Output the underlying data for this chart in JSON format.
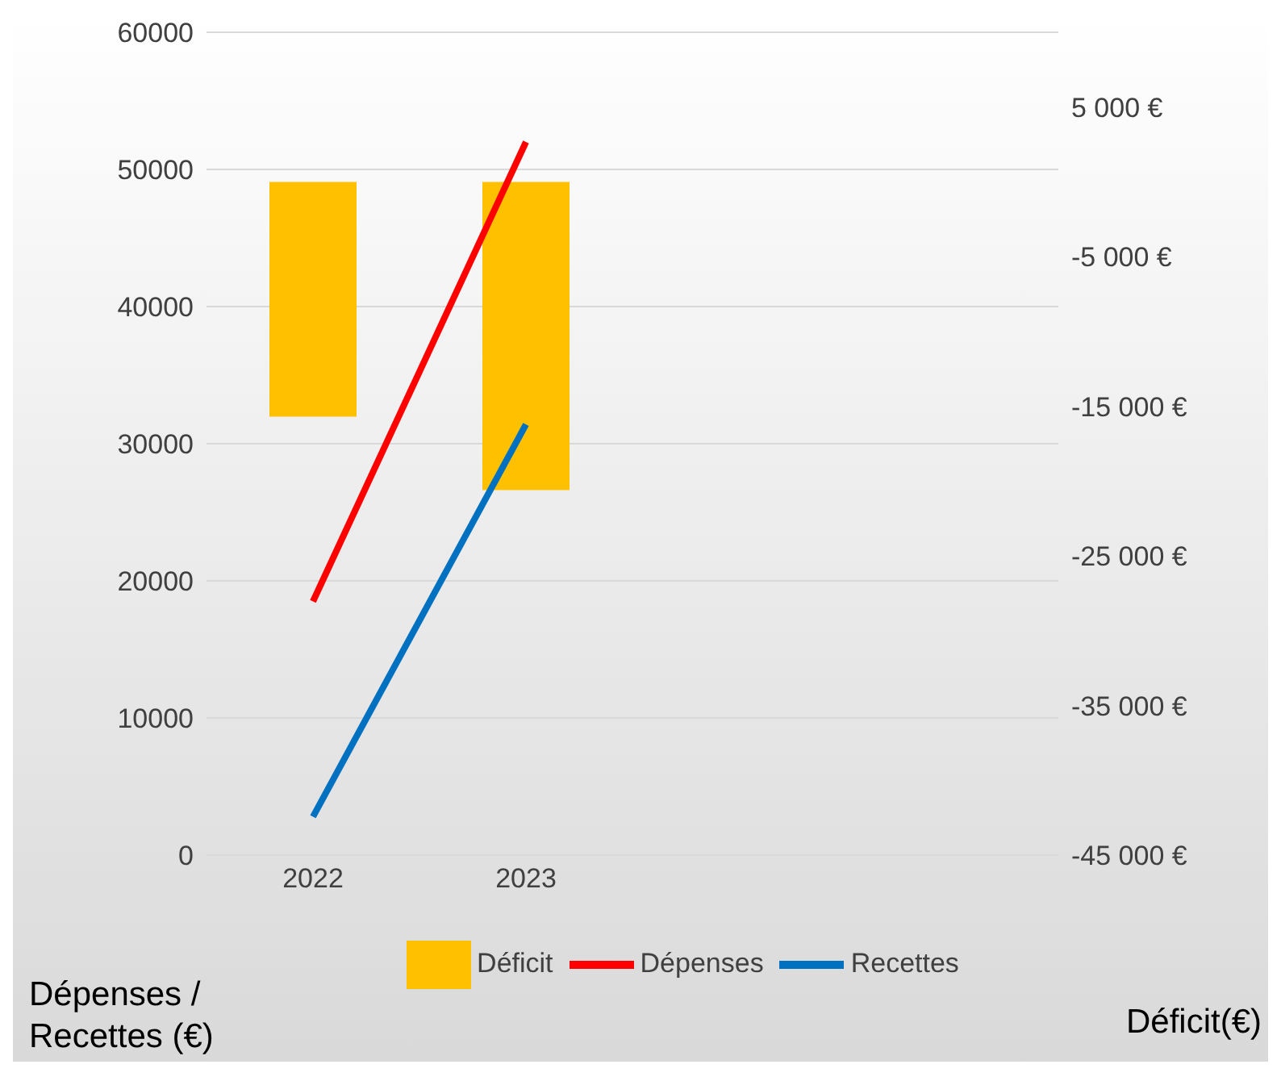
{
  "chart_data": {
    "type": "bar",
    "categories": [
      "2022",
      "2023",
      null,
      null
    ],
    "series": [
      {
        "name": "Déficit",
        "axis": "y2",
        "color": "#ffc000",
        "values": [
          -15700,
          -20600,
          null,
          null
        ]
      },
      {
        "name": "Dépenses",
        "type": "line",
        "color": "#ff0000",
        "values": [
          18500,
          52000,
          null,
          null
        ]
      },
      {
        "name": "Recettes",
        "type": "line",
        "color": "#0070c0",
        "values": [
          2800,
          31400,
          null,
          null
        ]
      }
    ],
    "ylabel": "Dépenses / Recettes (€)",
    "y2label": "Déficit(€)",
    "ylim": [
      0,
      60000
    ],
    "yticks": [
      0,
      10000,
      20000,
      30000,
      40000,
      50000,
      60000
    ],
    "y2lim": [
      -45000,
      10000
    ],
    "y2ticks": [
      {
        "value": -45000,
        "label": "-45 000 €"
      },
      {
        "value": -35000,
        "label": "-35 000 €"
      },
      {
        "value": -25000,
        "label": "-25 000 €"
      },
      {
        "value": -15000,
        "label": "-15 000 €"
      },
      {
        "value": -5000,
        "label": "-5 000 €"
      },
      {
        "value": 5000,
        "label": "5 000 €"
      }
    ],
    "grid": "y",
    "legend": "bottom",
    "marker": "none",
    "line_style": "solid"
  }
}
